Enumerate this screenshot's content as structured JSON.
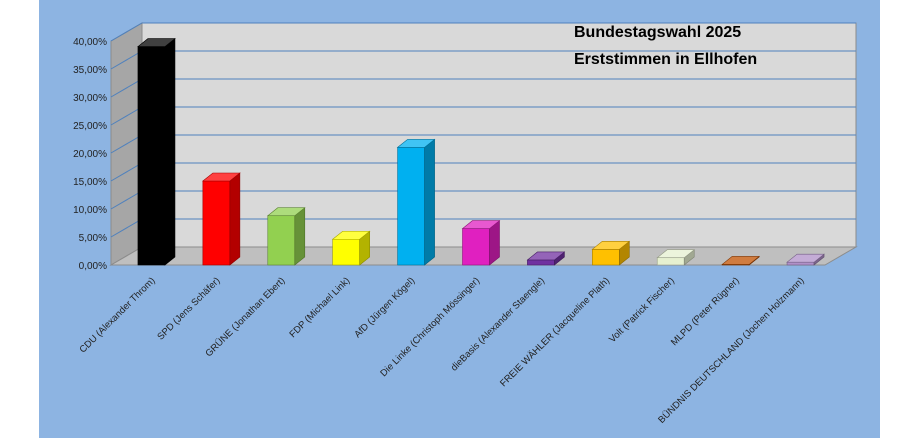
{
  "chart_data": {
    "type": "bar",
    "title_lines": [
      "Bundestagswahl 2025",
      "Erststimmen in Ellhofen"
    ],
    "categories": [
      "CDU (Alexander Throm)",
      "SPD (Jens Schäfer)",
      "GRÜNE (Jonathan Ebert)",
      "FDP (Michael Link)",
      "AfD (Jürgen Kögel)",
      "Die Linke (Christoph Mössinger)",
      "dieBasis (Alexander Staengle)",
      "FREIE WÄHLER (Jacqueline Plath)",
      "Volt (Patrick Fischer)",
      "MLPD (Peter Rügner)",
      "BÜNDNIS DEUTSCHLAND (Jochen Holzmann)"
    ],
    "values": [
      39.0,
      15.0,
      8.8,
      4.6,
      21.0,
      6.5,
      0.9,
      2.8,
      1.3,
      0.1,
      0.5
    ],
    "colors": [
      "#000000",
      "#ff0000",
      "#92d050",
      "#ffff00",
      "#00b0f0",
      "#e020c0",
      "#7030a0",
      "#ffc000",
      "#e6f0d0",
      "#c05000",
      "#b090c8"
    ],
    "yticks": [
      "0,00%",
      "5,00%",
      "10,00%",
      "15,00%",
      "20,00%",
      "25,00%",
      "30,00%",
      "35,00%",
      "40,00%"
    ],
    "ylim": [
      0,
      40
    ],
    "grid": true,
    "background": "#8db4e2",
    "plot_wall": "#d9d9d9",
    "gridline_color": "#4f81bd"
  }
}
